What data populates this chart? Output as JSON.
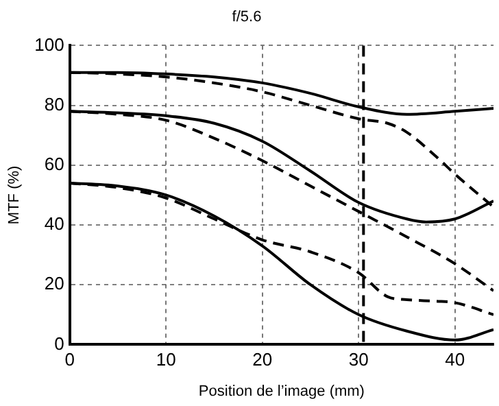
{
  "chart_data": {
    "type": "line",
    "title": "f/5.6",
    "xlabel": "Position de l’image (mm)",
    "ylabel": "MTF (%)",
    "xlim": [
      0,
      44
    ],
    "ylim": [
      0,
      100
    ],
    "xticks": [
      0,
      10,
      20,
      30,
      40
    ],
    "yticks": [
      0,
      20,
      40,
      60,
      80,
      100
    ],
    "grid": true,
    "legend": false,
    "marker": "none",
    "x": [
      0,
      5,
      10,
      15,
      20,
      25,
      30,
      35,
      40,
      44
    ],
    "series": [
      {
        "color": "#000000",
        "line_style": "solid",
        "values": [
          91,
          91,
          90.5,
          89.5,
          87.5,
          84,
          79.5,
          77,
          78,
          79
        ]
      },
      {
        "color": "#000000",
        "line_style": "dashed",
        "x": [
          0,
          5,
          10,
          15,
          20,
          25,
          30,
          33,
          35,
          38,
          40,
          44
        ],
        "values": [
          91,
          90.5,
          89.5,
          87.5,
          84.5,
          80,
          75.5,
          74,
          71,
          63,
          57,
          46
        ]
      },
      {
        "color": "#000000",
        "line_style": "solid",
        "x": [
          0,
          5,
          10,
          15,
          20,
          25,
          30,
          35,
          37,
          40,
          44
        ],
        "values": [
          78,
          77.5,
          76.5,
          74,
          68,
          58,
          47.5,
          42,
          41,
          42,
          48
        ]
      },
      {
        "color": "#000000",
        "line_style": "dashed",
        "values": [
          78,
          77,
          75,
          69,
          61.5,
          53,
          44.5,
          36,
          27,
          18
        ]
      },
      {
        "color": "#000000",
        "line_style": "solid",
        "values": [
          54,
          53,
          50,
          43,
          33,
          20,
          10,
          4.5,
          1.5,
          5
        ]
      },
      {
        "color": "#000000",
        "line_style": "dashed",
        "x": [
          0,
          5,
          10,
          15,
          20,
          25,
          30,
          33,
          35,
          38,
          40,
          44
        ],
        "values": [
          54,
          52.5,
          49,
          42,
          35,
          31,
          24,
          16,
          15,
          14.5,
          14,
          10
        ]
      }
    ],
    "ref_lines": [
      {
        "axis": "x",
        "value": 30.5,
        "color": "#000000",
        "line_style": "dashed"
      }
    ]
  }
}
